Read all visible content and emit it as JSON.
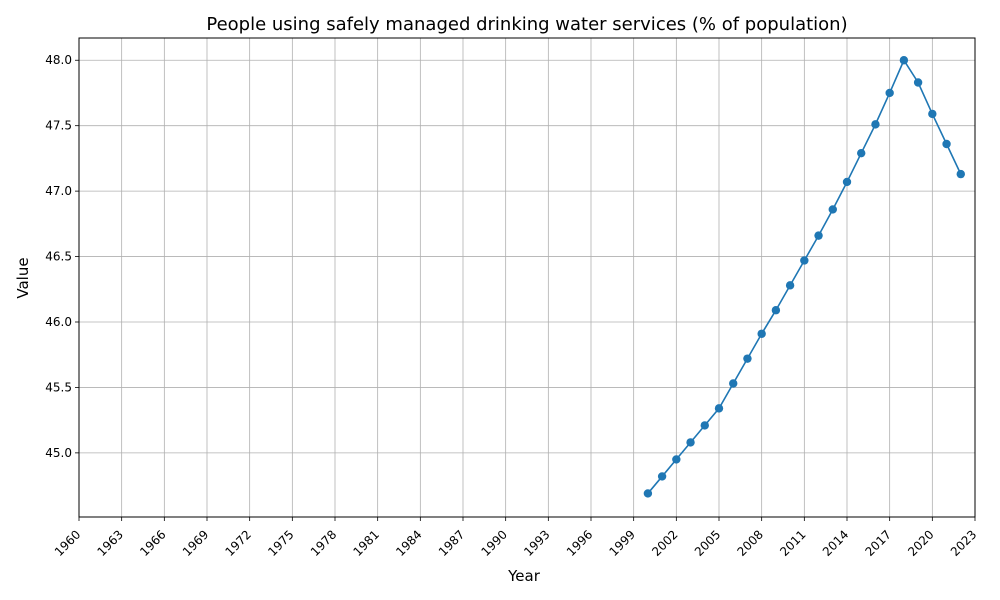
{
  "chart_data": {
    "type": "line",
    "title": "People using safely managed drinking water services (% of population)",
    "xlabel": "Year",
    "ylabel": "Value",
    "xlim": [
      1960,
      2023
    ],
    "ylim": [
      44.51,
      48.17
    ],
    "x_ticks": [
      "1960",
      "1963",
      "1966",
      "1969",
      "1972",
      "1975",
      "1978",
      "1981",
      "1984",
      "1987",
      "1990",
      "1993",
      "1996",
      "1999",
      "2002",
      "2005",
      "2008",
      "2011",
      "2014",
      "2017",
      "2020",
      "2023"
    ],
    "y_ticks": [
      "45.0",
      "45.5",
      "46.0",
      "46.5",
      "47.0",
      "47.5",
      "48.0"
    ],
    "grid": true,
    "series": [
      {
        "color": "#1f77b4",
        "marker": "circle",
        "x": [
          2000,
          2001,
          2002,
          2003,
          2004,
          2005,
          2006,
          2007,
          2008,
          2009,
          2010,
          2011,
          2012,
          2013,
          2014,
          2015,
          2016,
          2017,
          2018,
          2019,
          2020,
          2021,
          2022
        ],
        "values": [
          44.69,
          44.82,
          44.95,
          45.08,
          45.21,
          45.34,
          45.53,
          45.72,
          45.91,
          46.09,
          46.28,
          46.47,
          46.66,
          46.86,
          47.07,
          47.29,
          47.51,
          47.75,
          48.0,
          47.83,
          47.59,
          47.36,
          47.13
        ]
      }
    ]
  }
}
